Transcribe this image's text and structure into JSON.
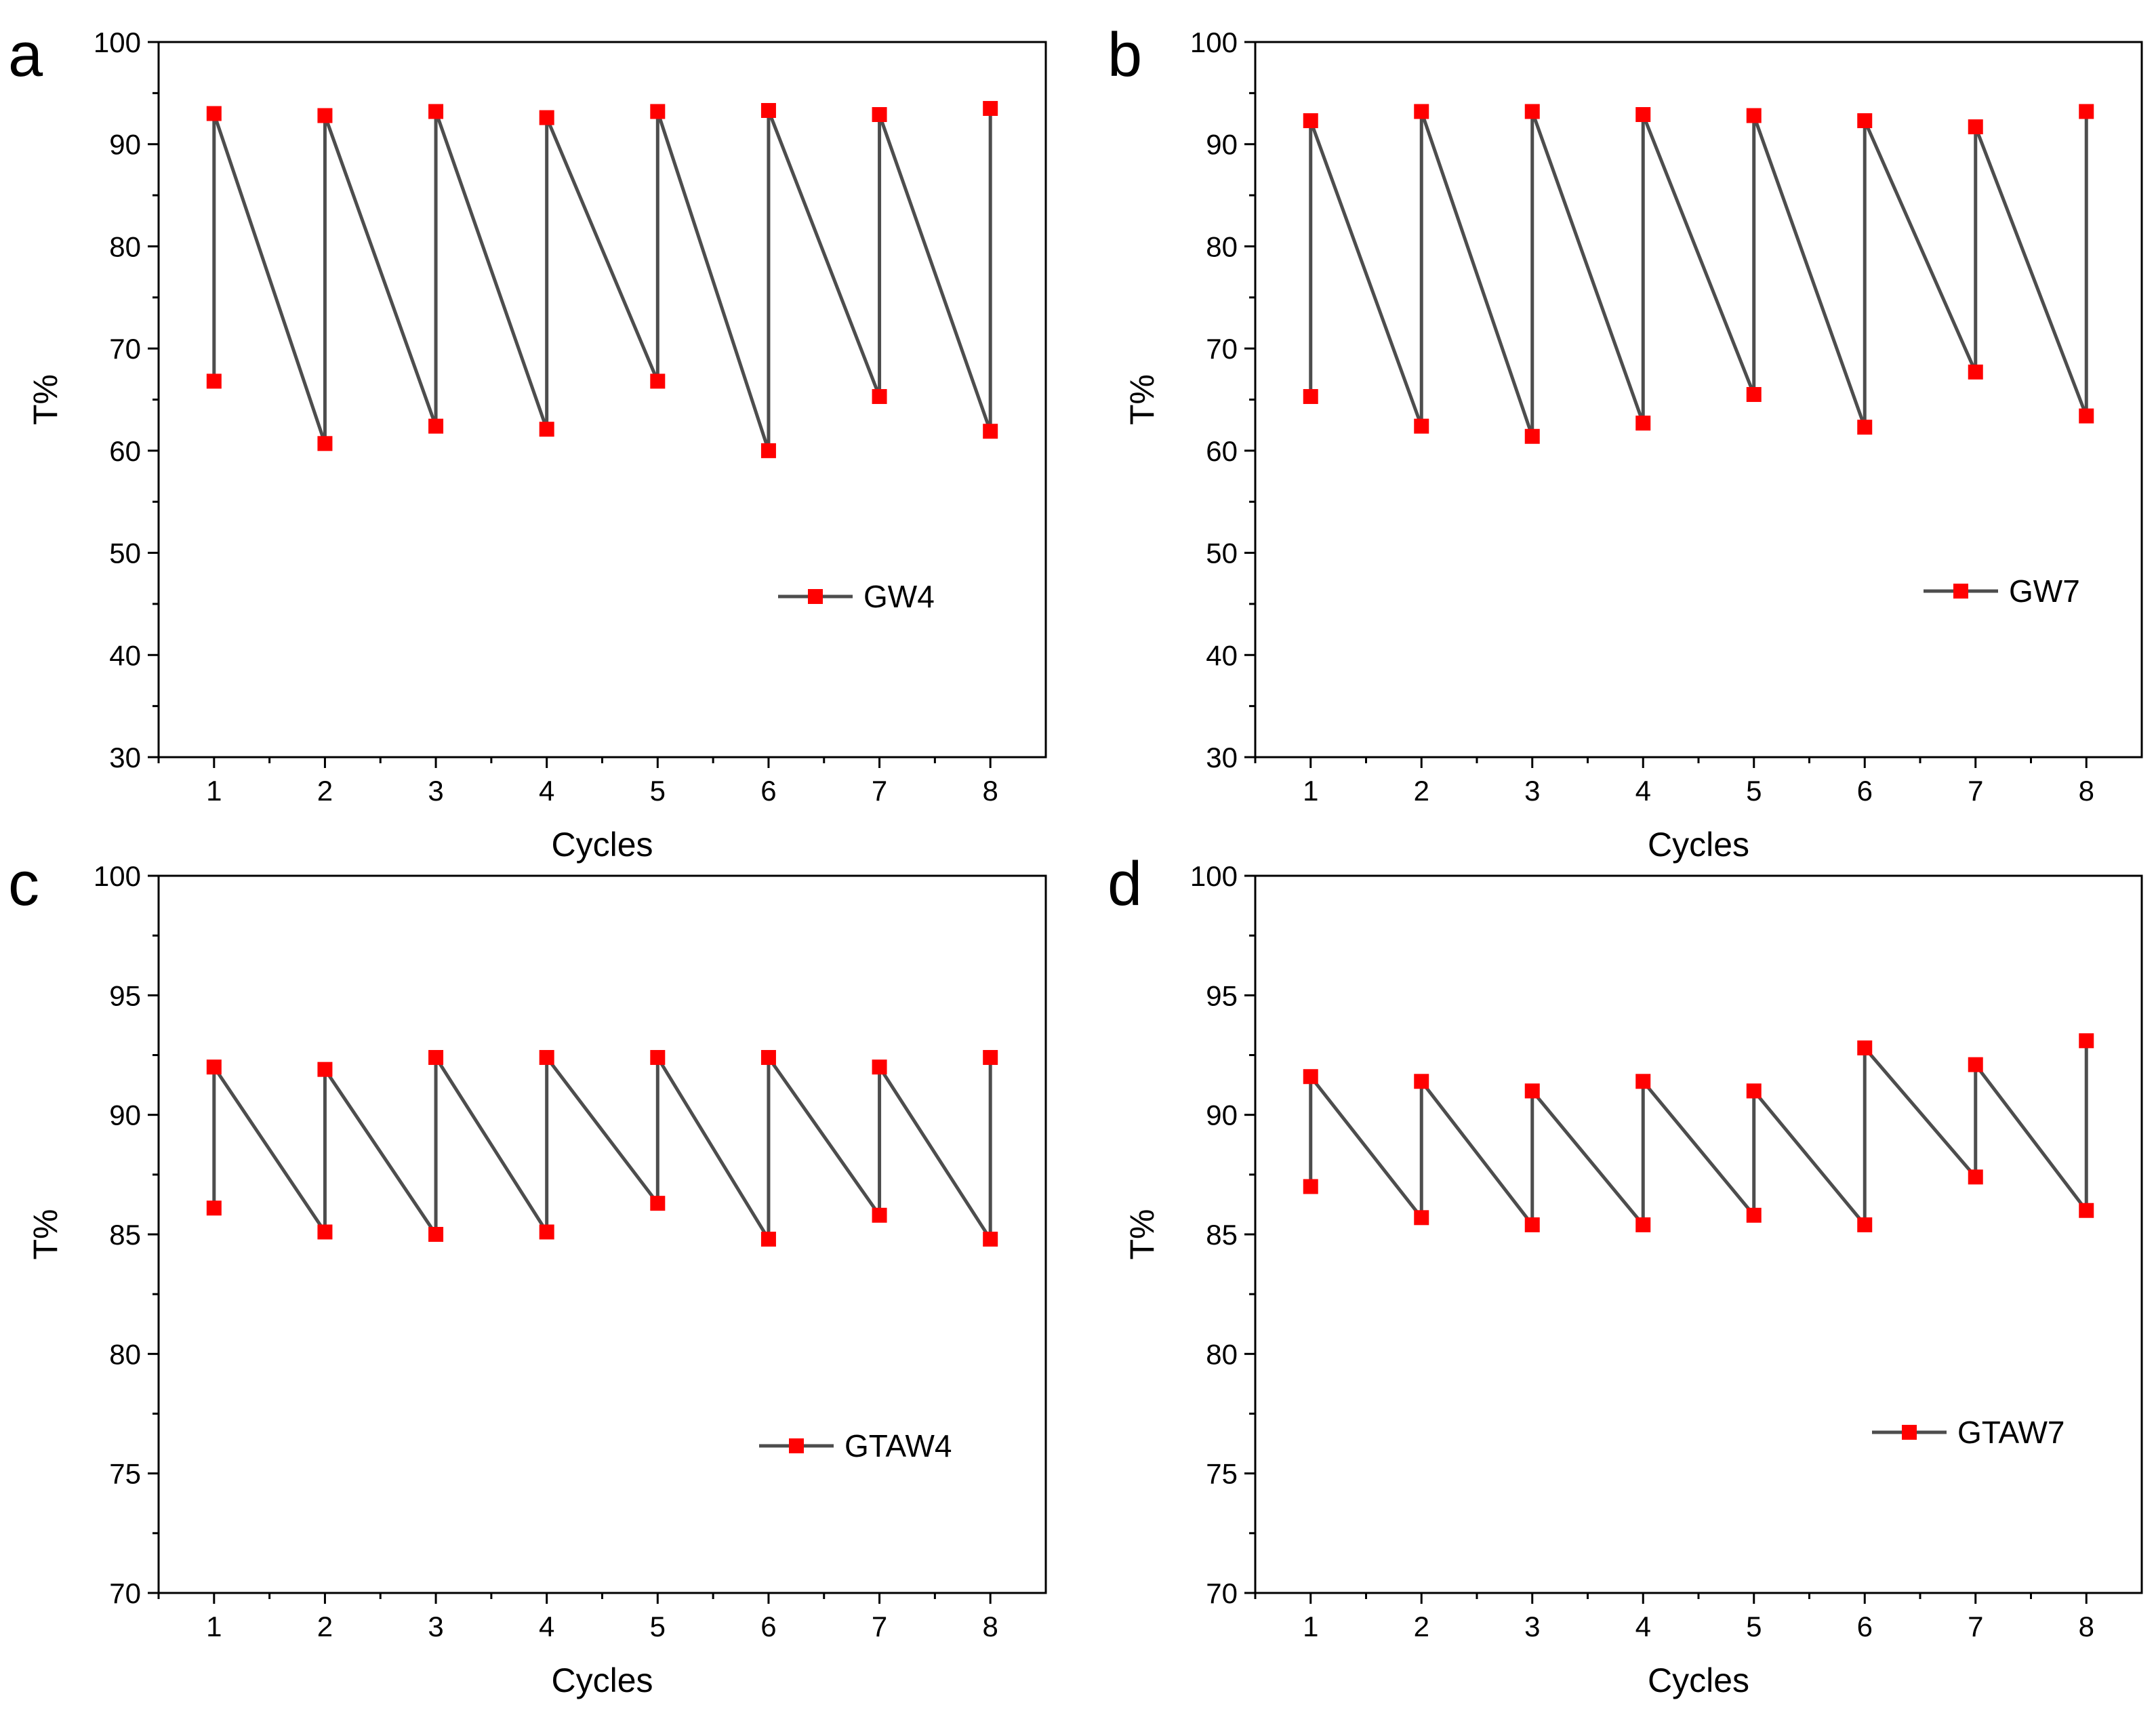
{
  "colors": {
    "line": "#4d4d4d",
    "marker": "#ff0000",
    "axis": "#000000",
    "background": "#ffffff"
  },
  "chart_data": [
    {
      "panel": "a",
      "type": "line",
      "title": "",
      "xlabel": "Cycles",
      "ylabel": "T%",
      "xlim": [
        0.5,
        8.5
      ],
      "ylim": [
        30,
        100
      ],
      "xticks": [
        1,
        2,
        3,
        4,
        5,
        6,
        7,
        8
      ],
      "yticks": [
        30,
        40,
        50,
        60,
        70,
        80,
        90,
        100
      ],
      "grid": false,
      "legend_position": "center-right",
      "series": [
        {
          "name": "GW4",
          "points": [
            [
              1,
              66.8
            ],
            [
              1,
              93.0
            ],
            [
              2,
              60.7
            ],
            [
              2,
              92.8
            ],
            [
              3,
              62.4
            ],
            [
              3,
              93.2
            ],
            [
              4,
              62.1
            ],
            [
              4,
              92.6
            ],
            [
              5,
              66.8
            ],
            [
              5,
              93.2
            ],
            [
              6,
              60.0
            ],
            [
              6,
              93.3
            ],
            [
              7,
              65.3
            ],
            [
              7,
              92.9
            ],
            [
              8,
              61.9
            ],
            [
              8,
              93.5
            ]
          ]
        }
      ]
    },
    {
      "panel": "b",
      "type": "line",
      "title": "",
      "xlabel": "Cycles",
      "ylabel": "T%",
      "xlim": [
        0.5,
        8.5
      ],
      "ylim": [
        30,
        100
      ],
      "xticks": [
        1,
        2,
        3,
        4,
        5,
        6,
        7,
        8
      ],
      "yticks": [
        30,
        40,
        50,
        60,
        70,
        80,
        90,
        100
      ],
      "grid": false,
      "legend_position": "center-right",
      "series": [
        {
          "name": "GW7",
          "points": [
            [
              1,
              65.3
            ],
            [
              1,
              92.3
            ],
            [
              2,
              62.4
            ],
            [
              2,
              93.2
            ],
            [
              3,
              61.4
            ],
            [
              3,
              93.2
            ],
            [
              4,
              62.7
            ],
            [
              4,
              92.9
            ],
            [
              5,
              65.5
            ],
            [
              5,
              92.8
            ],
            [
              6,
              62.3
            ],
            [
              6,
              92.3
            ],
            [
              7,
              67.7
            ],
            [
              7,
              91.7
            ],
            [
              8,
              63.4
            ],
            [
              8,
              93.2
            ]
          ]
        }
      ]
    },
    {
      "panel": "c",
      "type": "line",
      "title": "",
      "xlabel": "Cycles",
      "ylabel": "T%",
      "xlim": [
        0.5,
        8.5
      ],
      "ylim": [
        70,
        100
      ],
      "xticks": [
        1,
        2,
        3,
        4,
        5,
        6,
        7,
        8
      ],
      "yticks": [
        70,
        75,
        80,
        85,
        90,
        95,
        100
      ],
      "grid": false,
      "legend_position": "lower-right",
      "series": [
        {
          "name": "GTAW4",
          "points": [
            [
              1,
              86.1
            ],
            [
              1,
              92.0
            ],
            [
              2,
              85.1
            ],
            [
              2,
              91.9
            ],
            [
              3,
              85.0
            ],
            [
              3,
              92.4
            ],
            [
              4,
              85.1
            ],
            [
              4,
              92.4
            ],
            [
              5,
              86.3
            ],
            [
              5,
              92.4
            ],
            [
              6,
              84.8
            ],
            [
              6,
              92.4
            ],
            [
              7,
              85.8
            ],
            [
              7,
              92.0
            ],
            [
              8,
              84.8
            ],
            [
              8,
              92.4
            ]
          ]
        }
      ]
    },
    {
      "panel": "d",
      "type": "line",
      "title": "",
      "xlabel": "Cycles",
      "ylabel": "T%",
      "xlim": [
        0.5,
        8.5
      ],
      "ylim": [
        70,
        100
      ],
      "xticks": [
        1,
        2,
        3,
        4,
        5,
        6,
        7,
        8
      ],
      "yticks": [
        70,
        75,
        80,
        85,
        90,
        95,
        100
      ],
      "grid": false,
      "legend_position": "lower-right",
      "series": [
        {
          "name": "GTAW7",
          "points": [
            [
              1,
              87.0
            ],
            [
              1,
              91.6
            ],
            [
              2,
              85.7
            ],
            [
              2,
              91.4
            ],
            [
              3,
              85.4
            ],
            [
              3,
              91.0
            ],
            [
              4,
              85.4
            ],
            [
              4,
              91.4
            ],
            [
              5,
              85.8
            ],
            [
              5,
              91.0
            ],
            [
              6,
              85.4
            ],
            [
              6,
              92.8
            ],
            [
              7,
              87.4
            ],
            [
              7,
              92.1
            ],
            [
              8,
              86.0
            ],
            [
              8,
              93.1
            ]
          ]
        }
      ]
    }
  ]
}
